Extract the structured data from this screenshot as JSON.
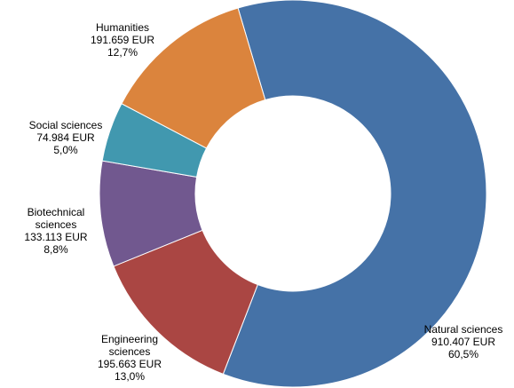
{
  "chart_data": {
    "type": "pie",
    "variant": "donut",
    "title": "",
    "legend": "none",
    "slices": [
      {
        "name_lines": [
          "Natural sciences"
        ],
        "amount": "910.407 EUR",
        "percent_label": "60,5%",
        "value": 910407,
        "color": "#4572A7"
      },
      {
        "name_lines": [
          "Engineering",
          "sciences"
        ],
        "amount": "195.663 EUR",
        "percent_label": "13,0%",
        "value": 195663,
        "color": "#AA4643"
      },
      {
        "name_lines": [
          "Biotechnical",
          "sciences"
        ],
        "amount": "133.113 EUR",
        "percent_label": "8,8%",
        "value": 133113,
        "color": "#71588F"
      },
      {
        "name_lines": [
          "Social sciences"
        ],
        "amount": "74.984 EUR",
        "percent_label": "5,0%",
        "value": 74984,
        "color": "#4198AF"
      },
      {
        "name_lines": [
          "Humanities"
        ],
        "amount": "191.659 EUR",
        "percent_label": "12,7%",
        "value": 191659,
        "color": "#DB843D"
      }
    ]
  }
}
